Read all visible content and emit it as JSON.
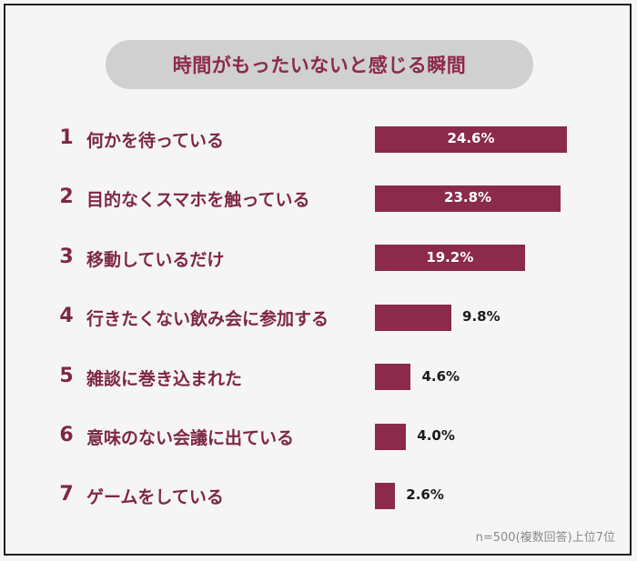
{
  "title": "時間がもったいないと感じる瞬間",
  "note": "n=500(複数回答)上位7位",
  "colors": {
    "bar": "#8b2a4a",
    "text": "#7d2746",
    "title_bg": "#d0d0d0"
  },
  "chart_data": {
    "type": "bar",
    "orientation": "horizontal",
    "title": "時間がもったいないと感じる瞬間",
    "ranks": [
      "1",
      "2",
      "3",
      "4",
      "5",
      "6",
      "7"
    ],
    "categories": [
      "何かを待っている",
      "目的なくスマホを触っている",
      "移動しているだけ",
      "行きたくない飲み会に参加する",
      "雑談に巻き込まれた",
      "意味のない会議に出ている",
      "ゲームをしている"
    ],
    "values": [
      24.6,
      23.8,
      19.2,
      9.8,
      4.6,
      4.0,
      2.6
    ],
    "value_labels": [
      "24.6%",
      "23.8%",
      "19.2%",
      "9.8%",
      "4.6%",
      "4.0%",
      "2.6%"
    ],
    "unit": "%"
  }
}
